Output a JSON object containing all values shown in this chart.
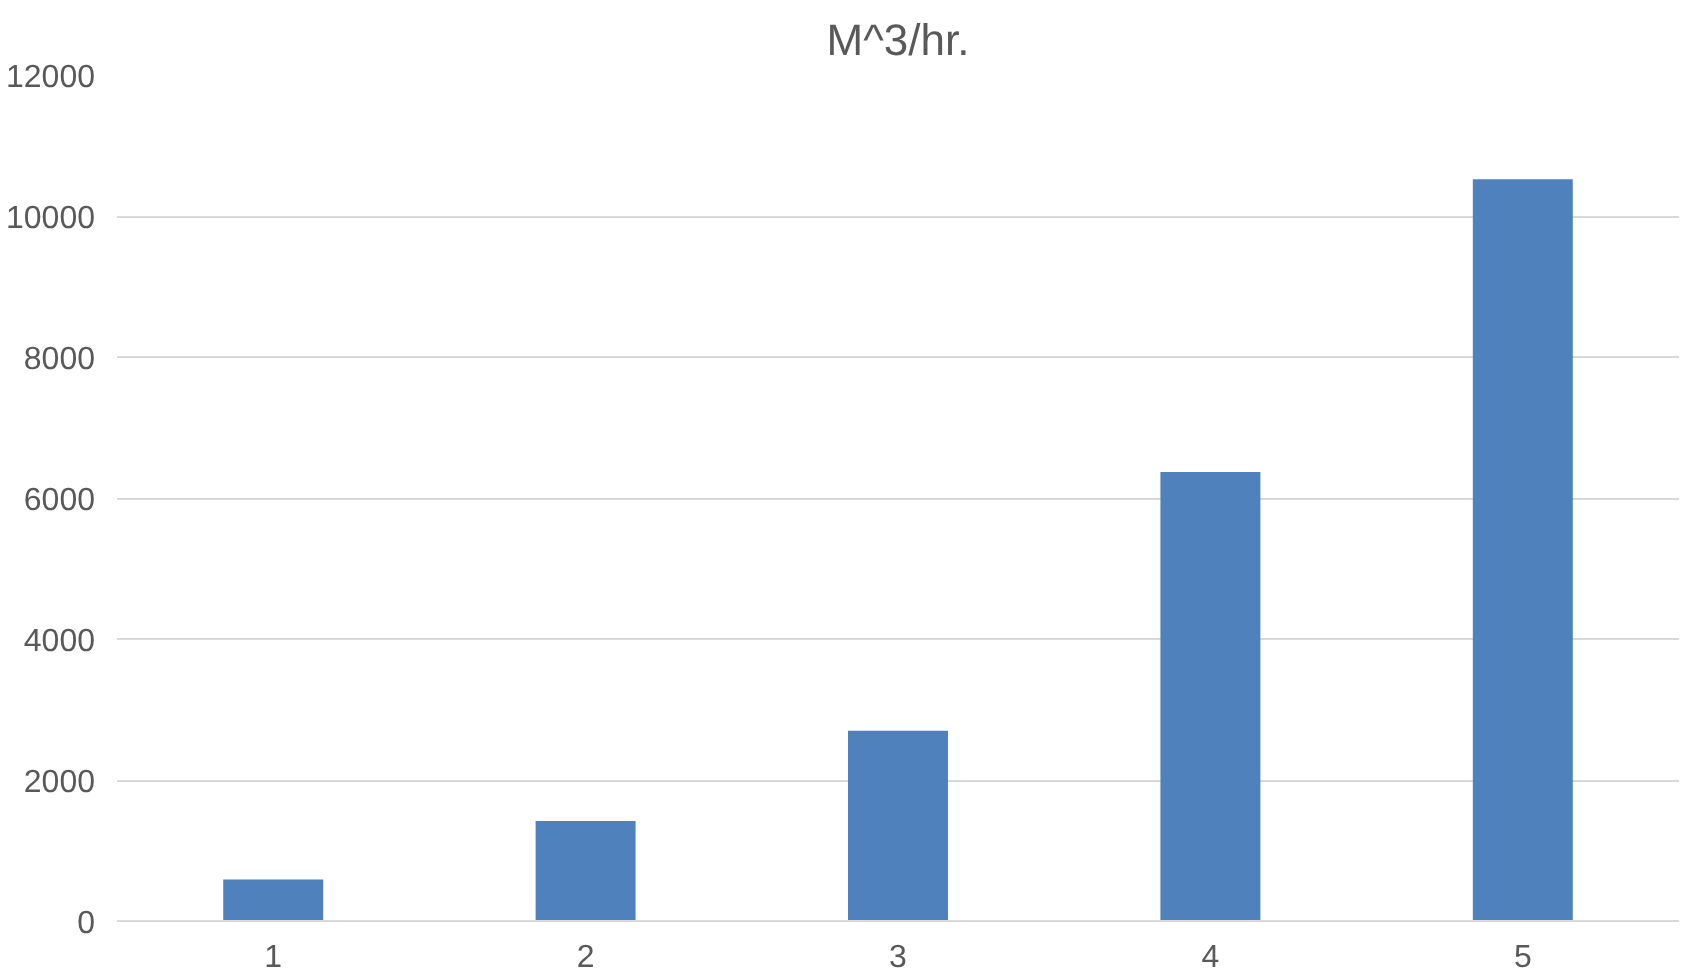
{
  "chart_data": {
    "type": "bar",
    "title": "M^3/hr.",
    "categories": [
      "1",
      "2",
      "3",
      "4",
      "5"
    ],
    "values": [
      590,
      1420,
      2700,
      6370,
      10520
    ],
    "color": "#4f81bd",
    "ylim": [
      0,
      12000
    ],
    "yticks": [
      0,
      2000,
      4000,
      6000,
      8000,
      10000,
      12000
    ],
    "grid": "y"
  }
}
